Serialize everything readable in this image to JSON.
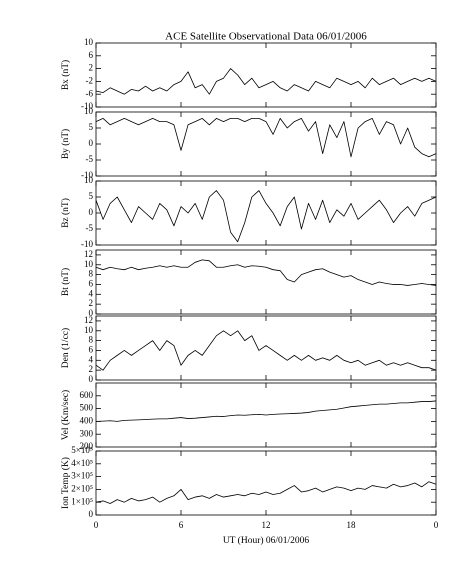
{
  "title": "ACE Satellite Observational Data   06/01/2006",
  "xlabel": "UT (Hour)   06/01/2006",
  "chart_data": [
    {
      "type": "line",
      "ylabel": "Bx (nT)",
      "ylim": [
        -10,
        10
      ],
      "yticks": [
        -10,
        -6,
        -2,
        2,
        6,
        10
      ],
      "x": [
        0,
        0.5,
        1,
        1.5,
        2,
        2.5,
        3,
        3.5,
        4,
        4.5,
        5,
        5.5,
        6,
        6.5,
        7,
        7.5,
        8,
        8.5,
        9,
        9.5,
        10,
        10.5,
        11,
        11.5,
        12,
        12.5,
        13,
        13.5,
        14,
        14.5,
        15,
        15.5,
        16,
        16.5,
        17,
        17.5,
        18,
        18.5,
        19,
        19.5,
        20,
        20.5,
        21,
        21.5,
        22,
        22.5,
        23,
        23.5,
        24
      ],
      "series": [
        {
          "color": "#000000",
          "values": [
            -5,
            -5.5,
            -4,
            -5,
            -6,
            -4.5,
            -5,
            -3.5,
            -5,
            -4,
            -5,
            -3,
            -2,
            1,
            -4,
            -3,
            -6,
            -2,
            -1,
            2,
            0,
            -3,
            -1,
            -4,
            -3,
            -2,
            -4,
            -5,
            -3,
            -4,
            -5,
            -2,
            -3,
            -4,
            -1,
            -2,
            -3,
            -2,
            -4,
            -1,
            -3,
            -2,
            -1,
            -3,
            -2,
            -1,
            -2,
            -1,
            -2
          ]
        }
      ]
    },
    {
      "type": "line",
      "ylabel": "By (nT)",
      "ylim": [
        -10,
        10
      ],
      "yticks": [
        -10,
        -5,
        0,
        5,
        10
      ],
      "x": [
        0,
        0.5,
        1,
        1.5,
        2,
        2.5,
        3,
        3.5,
        4,
        4.5,
        5,
        5.5,
        6,
        6.5,
        7,
        7.5,
        8,
        8.5,
        9,
        9.5,
        10,
        10.5,
        11,
        11.5,
        12,
        12.5,
        13,
        13.5,
        14,
        14.5,
        15,
        15.5,
        16,
        16.5,
        17,
        17.5,
        18,
        18.5,
        19,
        19.5,
        20,
        20.5,
        21,
        21.5,
        22,
        22.5,
        23,
        23.5,
        24
      ],
      "series": [
        {
          "color": "#000000",
          "values": [
            7,
            8,
            6,
            7,
            8,
            7,
            6,
            7,
            8,
            7,
            7,
            6,
            -2,
            6,
            7,
            8,
            6,
            8,
            7,
            8,
            8,
            7,
            8,
            8,
            7,
            3,
            8,
            5,
            7,
            8,
            4,
            7,
            -3,
            6,
            2,
            7,
            -4,
            5,
            7,
            8,
            3,
            7,
            6,
            0,
            5,
            -1,
            -3,
            -4,
            -3
          ]
        }
      ]
    },
    {
      "type": "line",
      "ylabel": "Bz (nT)",
      "ylim": [
        -10,
        10
      ],
      "yticks": [
        -10,
        -5,
        0,
        5,
        10
      ],
      "x": [
        0,
        0.5,
        1,
        1.5,
        2,
        2.5,
        3,
        3.5,
        4,
        4.5,
        5,
        5.5,
        6,
        6.5,
        7,
        7.5,
        8,
        8.5,
        9,
        9.5,
        10,
        10.5,
        11,
        11.5,
        12,
        12.5,
        13,
        13.5,
        14,
        14.5,
        15,
        15.5,
        16,
        16.5,
        17,
        17.5,
        18,
        18.5,
        19,
        19.5,
        20,
        20.5,
        21,
        21.5,
        22,
        22.5,
        23,
        23.5,
        24
      ],
      "series": [
        {
          "color": "#000000",
          "values": [
            4,
            -2,
            3,
            5,
            1,
            -3,
            2,
            0,
            -2,
            3,
            1,
            -4,
            2,
            0,
            3,
            -2,
            5,
            7,
            4,
            -6,
            -9,
            -3,
            5,
            7,
            3,
            0,
            -4,
            2,
            5,
            -5,
            3,
            -2,
            4,
            -3,
            1,
            -1,
            3,
            -2,
            0,
            2,
            4,
            1,
            -3,
            0,
            2,
            -1,
            3,
            4,
            5
          ]
        }
      ]
    },
    {
      "type": "line",
      "ylabel": "Bt (nT)",
      "ylim": [
        0,
        13
      ],
      "yticks": [
        0,
        2,
        4,
        6,
        8,
        10,
        12
      ],
      "x": [
        0,
        0.5,
        1,
        1.5,
        2,
        2.5,
        3,
        3.5,
        4,
        4.5,
        5,
        5.5,
        6,
        6.5,
        7,
        7.5,
        8,
        8.5,
        9,
        9.5,
        10,
        10.5,
        11,
        11.5,
        12,
        12.5,
        13,
        13.5,
        14,
        14.5,
        15,
        15.5,
        16,
        16.5,
        17,
        17.5,
        18,
        18.5,
        19,
        19.5,
        20,
        20.5,
        21,
        21.5,
        22,
        22.5,
        23,
        23.5,
        24
      ],
      "series": [
        {
          "color": "#000000",
          "values": [
            9.5,
            9,
            9.5,
            9.2,
            9,
            9.5,
            9,
            9.3,
            9.5,
            9.8,
            9.5,
            9.8,
            9.5,
            9.5,
            10.5,
            11,
            10.8,
            9.5,
            9.5,
            9.8,
            10,
            9.5,
            9.8,
            9.7,
            9.5,
            9,
            8.8,
            7,
            6.5,
            8,
            8.5,
            9,
            9.2,
            8.5,
            8,
            7.5,
            7.8,
            7,
            6.5,
            6,
            6.5,
            6.2,
            6,
            6,
            5.8,
            6,
            6.2,
            6,
            5.8
          ]
        }
      ]
    },
    {
      "type": "line",
      "ylabel": "Den (1/cc)",
      "ylim": [
        0,
        13
      ],
      "yticks": [
        0,
        2,
        4,
        6,
        8,
        10,
        12
      ],
      "x": [
        0,
        0.5,
        1,
        1.5,
        2,
        2.5,
        3,
        3.5,
        4,
        4.5,
        5,
        5.5,
        6,
        6.5,
        7,
        7.5,
        8,
        8.5,
        9,
        9.5,
        10,
        10.5,
        11,
        11.5,
        12,
        12.5,
        13,
        13.5,
        14,
        14.5,
        15,
        15.5,
        16,
        16.5,
        17,
        17.5,
        18,
        18.5,
        19,
        19.5,
        20,
        20.5,
        21,
        21.5,
        22,
        22.5,
        23,
        23.5,
        24
      ],
      "series": [
        {
          "color": "#000000",
          "values": [
            3,
            2,
            4,
            5,
            6,
            5,
            6,
            7,
            8,
            6,
            8,
            7,
            3,
            5,
            6,
            5,
            7,
            9,
            10,
            9,
            10,
            8,
            9,
            6,
            7,
            6,
            5,
            4,
            5,
            4,
            5,
            4,
            4.5,
            4,
            5,
            4,
            3.5,
            4,
            3,
            3.5,
            4,
            3,
            3.5,
            3,
            3.5,
            3,
            2.5,
            2.5,
            2
          ]
        }
      ]
    },
    {
      "type": "line",
      "ylabel": "Vel (Km/sec)",
      "ylim": [
        200,
        700
      ],
      "yticks": [
        200,
        300,
        400,
        500,
        600
      ],
      "x": [
        0,
        0.5,
        1,
        1.5,
        2,
        2.5,
        3,
        3.5,
        4,
        4.5,
        5,
        5.5,
        6,
        6.5,
        7,
        7.5,
        8,
        8.5,
        9,
        9.5,
        10,
        10.5,
        11,
        11.5,
        12,
        12.5,
        13,
        13.5,
        14,
        14.5,
        15,
        15.5,
        16,
        16.5,
        17,
        17.5,
        18,
        18.5,
        19,
        19.5,
        20,
        20.5,
        21,
        21.5,
        22,
        22.5,
        23,
        23.5,
        24
      ],
      "series": [
        {
          "color": "#000000",
          "values": [
            400,
            402,
            405,
            400,
            408,
            410,
            412,
            415,
            418,
            420,
            420,
            425,
            430,
            422,
            425,
            430,
            435,
            440,
            438,
            445,
            450,
            448,
            452,
            455,
            450,
            455,
            458,
            460,
            462,
            465,
            470,
            480,
            485,
            490,
            495,
            505,
            515,
            520,
            525,
            530,
            535,
            535,
            540,
            545,
            545,
            550,
            555,
            555,
            560
          ]
        }
      ]
    },
    {
      "type": "line",
      "ylabel": "Ion Temp (K)",
      "ylim": [
        0,
        500000
      ],
      "yticks": [
        0,
        {
          "value": 100000,
          "label": "1×10⁵"
        },
        {
          "value": 200000,
          "label": "2×10⁵"
        },
        {
          "value": 300000,
          "label": "3×10⁵"
        },
        {
          "value": 400000,
          "label": "4×10⁵"
        },
        {
          "value": 500000,
          "label": "5×10⁵"
        }
      ],
      "xlim": [
        0,
        24
      ],
      "xticks": [
        0,
        6,
        12,
        18,
        {
          "value": 24,
          "label": "0"
        }
      ],
      "x": [
        0,
        0.5,
        1,
        1.5,
        2,
        2.5,
        3,
        3.5,
        4,
        4.5,
        5,
        5.5,
        6,
        6.5,
        7,
        7.5,
        8,
        8.5,
        9,
        9.5,
        10,
        10.5,
        11,
        11.5,
        12,
        12.5,
        13,
        13.5,
        14,
        14.5,
        15,
        15.5,
        16,
        16.5,
        17,
        17.5,
        18,
        18.5,
        19,
        19.5,
        20,
        20.5,
        21,
        21.5,
        22,
        22.5,
        23,
        23.5,
        24
      ],
      "series": [
        {
          "color": "#000000",
          "values": [
            100000,
            110000,
            90000,
            120000,
            100000,
            130000,
            110000,
            120000,
            140000,
            100000,
            130000,
            150000,
            200000,
            120000,
            140000,
            150000,
            130000,
            160000,
            140000,
            150000,
            160000,
            150000,
            170000,
            160000,
            180000,
            160000,
            170000,
            200000,
            230000,
            180000,
            190000,
            210000,
            180000,
            200000,
            220000,
            210000,
            190000,
            210000,
            200000,
            230000,
            220000,
            210000,
            240000,
            220000,
            230000,
            250000,
            220000,
            260000,
            240000
          ]
        }
      ]
    }
  ]
}
